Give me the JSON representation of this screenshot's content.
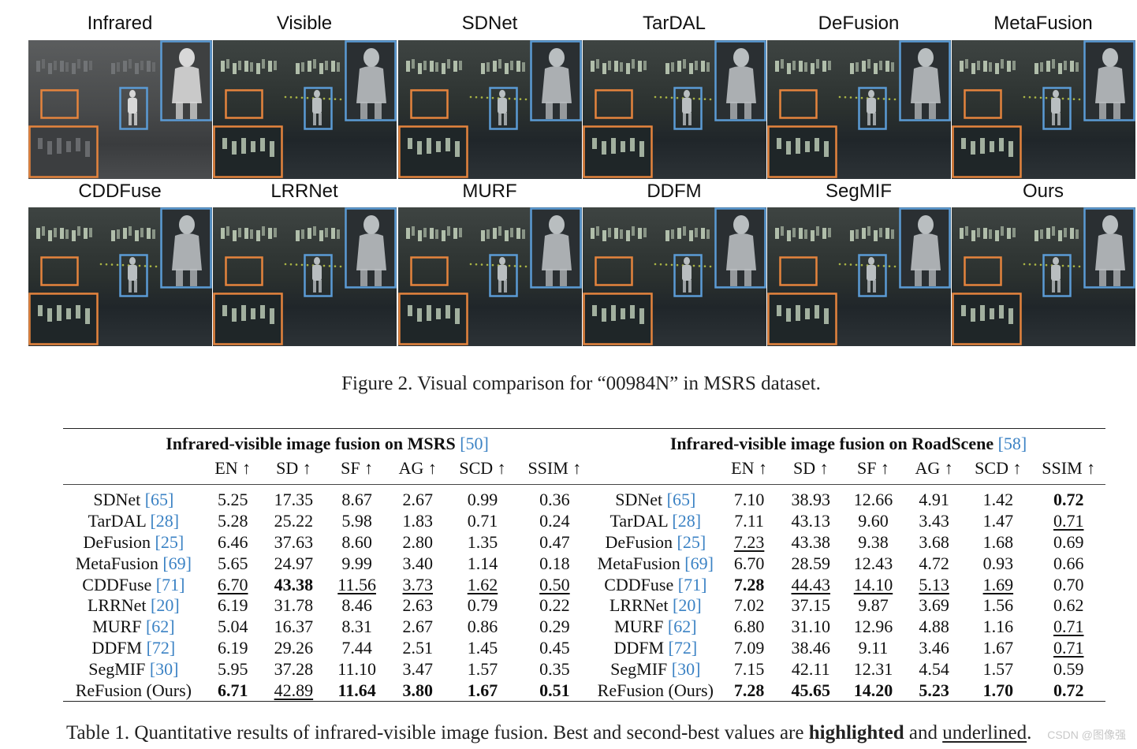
{
  "figure": {
    "panels": [
      "Infrared",
      "Visible",
      "SDNet",
      "TarDAL",
      "DeFusion",
      "MetaFusion",
      "CDDFuse",
      "LRRNet",
      "MURF",
      "DDFM",
      "SegMIF",
      "Ours"
    ],
    "caption": "Figure 2. Visual comparison for “00984N” in MSRS dataset.",
    "box_colors": {
      "orange": "#e5843d",
      "blue": "#5b9bd5"
    }
  },
  "table": {
    "groups": [
      {
        "title": "Infrared-visible image fusion on MSRS",
        "ref": "50"
      },
      {
        "title": "Infrared-visible image fusion on RoadScene",
        "ref": "58"
      }
    ],
    "metrics": [
      "EN ↑",
      "SD ↑",
      "SF ↑",
      "AG ↑",
      "SCD ↑",
      "SSIM ↑"
    ],
    "rows": [
      {
        "name": "SDNet",
        "ref": "65",
        "left": [
          "5.25",
          "17.35",
          "8.67",
          "2.67",
          "0.99",
          "0.36"
        ],
        "right": [
          "7.10",
          "38.93",
          "12.66",
          "4.91",
          "1.42",
          "0.72"
        ]
      },
      {
        "name": "TarDAL",
        "ref": "28",
        "left": [
          "5.28",
          "25.22",
          "5.98",
          "1.83",
          "0.71",
          "0.24"
        ],
        "right": [
          "7.11",
          "43.13",
          "9.60",
          "3.43",
          "1.47",
          "0.71"
        ]
      },
      {
        "name": "DeFusion",
        "ref": "25",
        "left": [
          "6.46",
          "37.63",
          "8.60",
          "2.80",
          "1.35",
          "0.47"
        ],
        "right": [
          "7.23",
          "43.38",
          "9.38",
          "3.68",
          "1.68",
          "0.69"
        ]
      },
      {
        "name": "MetaFusion",
        "ref": "69",
        "left": [
          "5.65",
          "24.97",
          "9.99",
          "3.40",
          "1.14",
          "0.18"
        ],
        "right": [
          "6.70",
          "28.59",
          "12.43",
          "4.72",
          "0.93",
          "0.66"
        ]
      },
      {
        "name": "CDDFuse",
        "ref": "71",
        "left": [
          "6.70",
          "43.38",
          "11.56",
          "3.73",
          "1.62",
          "0.50"
        ],
        "right": [
          "7.28",
          "44.43",
          "14.10",
          "5.13",
          "1.69",
          "0.70"
        ]
      },
      {
        "name": "LRRNet",
        "ref": "20",
        "left": [
          "6.19",
          "31.78",
          "8.46",
          "2.63",
          "0.79",
          "0.22"
        ],
        "right": [
          "7.02",
          "37.15",
          "9.87",
          "3.69",
          "1.56",
          "0.62"
        ]
      },
      {
        "name": "MURF",
        "ref": "62",
        "left": [
          "5.04",
          "16.37",
          "8.31",
          "2.67",
          "0.86",
          "0.29"
        ],
        "right": [
          "6.80",
          "31.10",
          "12.96",
          "4.88",
          "1.16",
          "0.71"
        ]
      },
      {
        "name": "DDFM",
        "ref": "72",
        "left": [
          "6.19",
          "29.26",
          "7.44",
          "2.51",
          "1.45",
          "0.45"
        ],
        "right": [
          "7.09",
          "38.46",
          "9.11",
          "3.46",
          "1.67",
          "0.71"
        ]
      },
      {
        "name": "SegMIF",
        "ref": "30",
        "left": [
          "5.95",
          "37.28",
          "11.10",
          "3.47",
          "1.57",
          "0.35"
        ],
        "right": [
          "7.15",
          "42.11",
          "12.31",
          "4.54",
          "1.57",
          "0.59"
        ]
      },
      {
        "name": "ReFusion (Ours)",
        "ref": "",
        "left": [
          "6.71",
          "42.89",
          "11.64",
          "3.80",
          "1.67",
          "0.51"
        ],
        "right": [
          "7.28",
          "45.65",
          "14.20",
          "5.23",
          "1.70",
          "0.72"
        ]
      }
    ],
    "caption": {
      "lead": "Table 1. Quantitative results of infrared-visible image fusion. Best and second-best values are ",
      "bold": "highlighted",
      "mid": " and ",
      "underline": "underlined",
      "end": "."
    }
  },
  "watermark": "CSDN @图像强"
}
